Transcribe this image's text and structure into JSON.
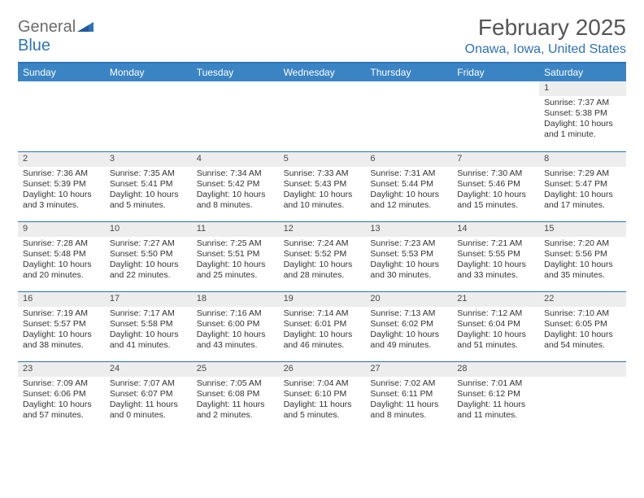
{
  "brand": {
    "part1": "General",
    "part2": "Blue"
  },
  "title": "February 2025",
  "location": "Onawa, Iowa, United States",
  "colors": {
    "accent": "#2d72b8",
    "header_bg": "#3b84c4",
    "daynum_bg": "#ededed",
    "text": "#333333",
    "title_text": "#555555"
  },
  "day_headers": [
    "Sunday",
    "Monday",
    "Tuesday",
    "Wednesday",
    "Thursday",
    "Friday",
    "Saturday"
  ],
  "weeks": [
    [
      null,
      null,
      null,
      null,
      null,
      null,
      {
        "n": "1",
        "sunrise": "Sunrise: 7:37 AM",
        "sunset": "Sunset: 5:38 PM",
        "daylight": "Daylight: 10 hours and 1 minute."
      }
    ],
    [
      {
        "n": "2",
        "sunrise": "Sunrise: 7:36 AM",
        "sunset": "Sunset: 5:39 PM",
        "daylight": "Daylight: 10 hours and 3 minutes."
      },
      {
        "n": "3",
        "sunrise": "Sunrise: 7:35 AM",
        "sunset": "Sunset: 5:41 PM",
        "daylight": "Daylight: 10 hours and 5 minutes."
      },
      {
        "n": "4",
        "sunrise": "Sunrise: 7:34 AM",
        "sunset": "Sunset: 5:42 PM",
        "daylight": "Daylight: 10 hours and 8 minutes."
      },
      {
        "n": "5",
        "sunrise": "Sunrise: 7:33 AM",
        "sunset": "Sunset: 5:43 PM",
        "daylight": "Daylight: 10 hours and 10 minutes."
      },
      {
        "n": "6",
        "sunrise": "Sunrise: 7:31 AM",
        "sunset": "Sunset: 5:44 PM",
        "daylight": "Daylight: 10 hours and 12 minutes."
      },
      {
        "n": "7",
        "sunrise": "Sunrise: 7:30 AM",
        "sunset": "Sunset: 5:46 PM",
        "daylight": "Daylight: 10 hours and 15 minutes."
      },
      {
        "n": "8",
        "sunrise": "Sunrise: 7:29 AM",
        "sunset": "Sunset: 5:47 PM",
        "daylight": "Daylight: 10 hours and 17 minutes."
      }
    ],
    [
      {
        "n": "9",
        "sunrise": "Sunrise: 7:28 AM",
        "sunset": "Sunset: 5:48 PM",
        "daylight": "Daylight: 10 hours and 20 minutes."
      },
      {
        "n": "10",
        "sunrise": "Sunrise: 7:27 AM",
        "sunset": "Sunset: 5:50 PM",
        "daylight": "Daylight: 10 hours and 22 minutes."
      },
      {
        "n": "11",
        "sunrise": "Sunrise: 7:25 AM",
        "sunset": "Sunset: 5:51 PM",
        "daylight": "Daylight: 10 hours and 25 minutes."
      },
      {
        "n": "12",
        "sunrise": "Sunrise: 7:24 AM",
        "sunset": "Sunset: 5:52 PM",
        "daylight": "Daylight: 10 hours and 28 minutes."
      },
      {
        "n": "13",
        "sunrise": "Sunrise: 7:23 AM",
        "sunset": "Sunset: 5:53 PM",
        "daylight": "Daylight: 10 hours and 30 minutes."
      },
      {
        "n": "14",
        "sunrise": "Sunrise: 7:21 AM",
        "sunset": "Sunset: 5:55 PM",
        "daylight": "Daylight: 10 hours and 33 minutes."
      },
      {
        "n": "15",
        "sunrise": "Sunrise: 7:20 AM",
        "sunset": "Sunset: 5:56 PM",
        "daylight": "Daylight: 10 hours and 35 minutes."
      }
    ],
    [
      {
        "n": "16",
        "sunrise": "Sunrise: 7:19 AM",
        "sunset": "Sunset: 5:57 PM",
        "daylight": "Daylight: 10 hours and 38 minutes."
      },
      {
        "n": "17",
        "sunrise": "Sunrise: 7:17 AM",
        "sunset": "Sunset: 5:58 PM",
        "daylight": "Daylight: 10 hours and 41 minutes."
      },
      {
        "n": "18",
        "sunrise": "Sunrise: 7:16 AM",
        "sunset": "Sunset: 6:00 PM",
        "daylight": "Daylight: 10 hours and 43 minutes."
      },
      {
        "n": "19",
        "sunrise": "Sunrise: 7:14 AM",
        "sunset": "Sunset: 6:01 PM",
        "daylight": "Daylight: 10 hours and 46 minutes."
      },
      {
        "n": "20",
        "sunrise": "Sunrise: 7:13 AM",
        "sunset": "Sunset: 6:02 PM",
        "daylight": "Daylight: 10 hours and 49 minutes."
      },
      {
        "n": "21",
        "sunrise": "Sunrise: 7:12 AM",
        "sunset": "Sunset: 6:04 PM",
        "daylight": "Daylight: 10 hours and 51 minutes."
      },
      {
        "n": "22",
        "sunrise": "Sunrise: 7:10 AM",
        "sunset": "Sunset: 6:05 PM",
        "daylight": "Daylight: 10 hours and 54 minutes."
      }
    ],
    [
      {
        "n": "23",
        "sunrise": "Sunrise: 7:09 AM",
        "sunset": "Sunset: 6:06 PM",
        "daylight": "Daylight: 10 hours and 57 minutes."
      },
      {
        "n": "24",
        "sunrise": "Sunrise: 7:07 AM",
        "sunset": "Sunset: 6:07 PM",
        "daylight": "Daylight: 11 hours and 0 minutes."
      },
      {
        "n": "25",
        "sunrise": "Sunrise: 7:05 AM",
        "sunset": "Sunset: 6:08 PM",
        "daylight": "Daylight: 11 hours and 2 minutes."
      },
      {
        "n": "26",
        "sunrise": "Sunrise: 7:04 AM",
        "sunset": "Sunset: 6:10 PM",
        "daylight": "Daylight: 11 hours and 5 minutes."
      },
      {
        "n": "27",
        "sunrise": "Sunrise: 7:02 AM",
        "sunset": "Sunset: 6:11 PM",
        "daylight": "Daylight: 11 hours and 8 minutes."
      },
      {
        "n": "28",
        "sunrise": "Sunrise: 7:01 AM",
        "sunset": "Sunset: 6:12 PM",
        "daylight": "Daylight: 11 hours and 11 minutes."
      },
      null
    ]
  ]
}
